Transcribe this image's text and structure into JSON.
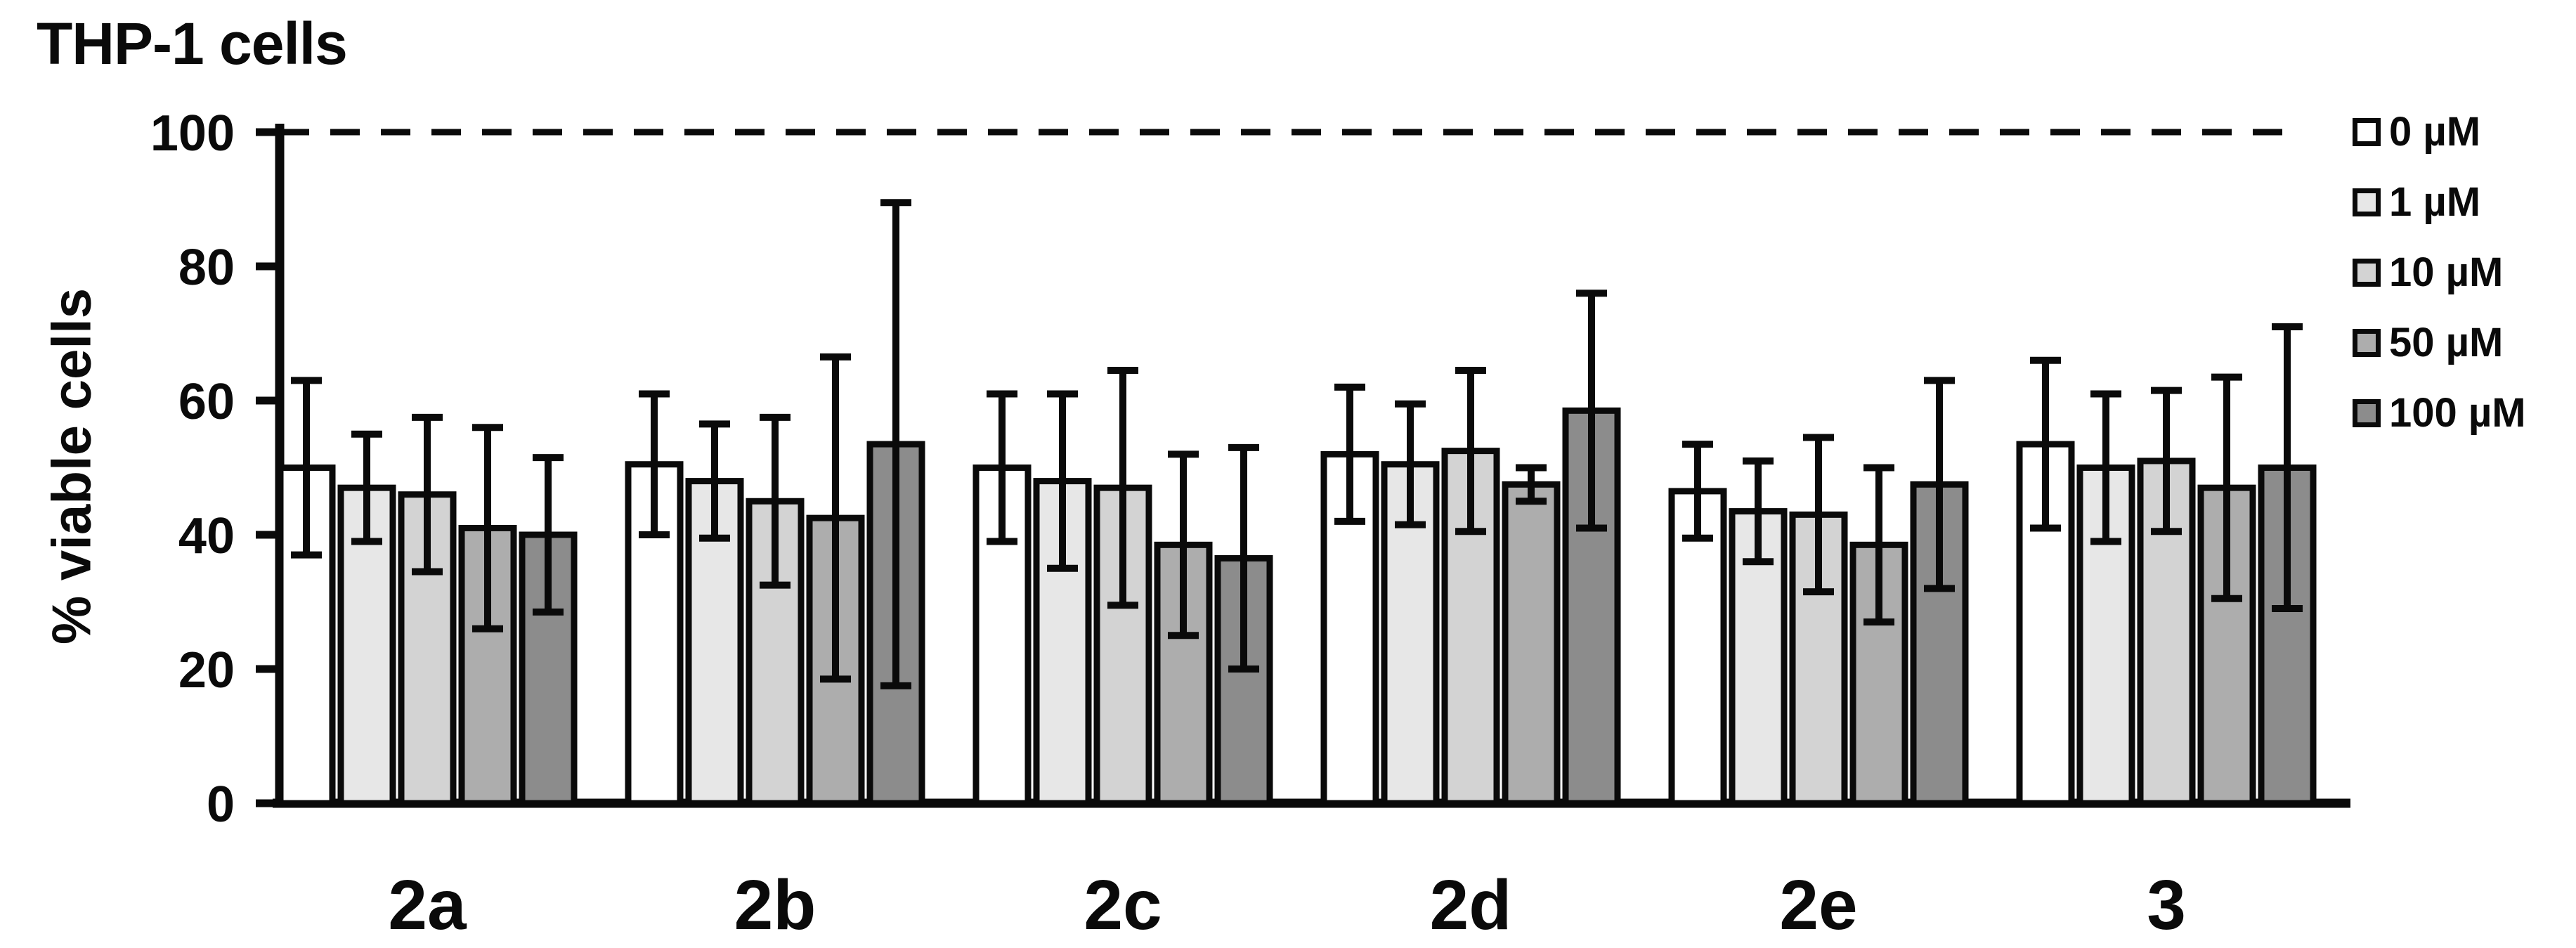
{
  "chart_data": {
    "type": "bar",
    "title": "THP-1 cells",
    "xlabel": "",
    "ylabel": "% viable cells",
    "categories": [
      "2a",
      "2b",
      "2c",
      "2d",
      "2e",
      "3"
    ],
    "y_ticks": [
      0,
      20,
      40,
      60,
      80,
      100
    ],
    "ylim": [
      0,
      100
    ],
    "grid": false,
    "legend_position": "right",
    "reference_line": {
      "value": 100,
      "style": "dashed",
      "color": "#0a0a0a"
    },
    "error_bars": "symmetric",
    "series": [
      {
        "name": "0 µM",
        "color": "#ffffff",
        "values": [
          50,
          50.5,
          50,
          52,
          46.5,
          53.5
        ],
        "errors": [
          13,
          10.5,
          11,
          10,
          7,
          12.5
        ]
      },
      {
        "name": "1 µM",
        "color": "#e7e7e7",
        "values": [
          47,
          48,
          48,
          50.5,
          43.5,
          50
        ],
        "errors": [
          8,
          8.5,
          13,
          9,
          7.5,
          11
        ]
      },
      {
        "name": "10 µM",
        "color": "#d3d3d3",
        "values": [
          46,
          45,
          47,
          52.5,
          43,
          51
        ],
        "errors": [
          11.5,
          12.5,
          17.5,
          12,
          11.5,
          10.5
        ]
      },
      {
        "name": "50 µM",
        "color": "#adadad",
        "values": [
          41,
          42.5,
          38.5,
          47.5,
          38.5,
          47
        ],
        "errors": [
          15,
          24,
          13.5,
          2.5,
          11.5,
          16.5
        ]
      },
      {
        "name": "100 µM",
        "color": "#8c8c8c",
        "values": [
          40,
          53.5,
          36.5,
          58.5,
          47.5,
          50
        ],
        "errors": [
          11.5,
          36,
          16.5,
          17.5,
          15.5,
          21
        ]
      }
    ],
    "colors": {
      "axis": "#0a0a0a",
      "bar_outline": "#0a0a0a",
      "error_bar": "#0a0a0a",
      "background": "#ffffff"
    }
  }
}
